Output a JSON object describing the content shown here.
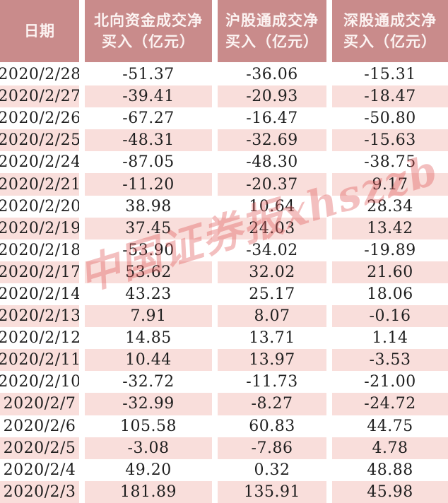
{
  "watermark": {
    "text": "中国证券报xhszzb",
    "color": "#e15f5f"
  },
  "colors": {
    "header_bg": "#c98b8b",
    "header_text": "#fcf3f2",
    "row_alt_bg": "#f9dedb",
    "row_bg": "#ffffff",
    "cell_text": "#1f1f1f"
  },
  "table": {
    "columns": [
      {
        "key": "date",
        "label": "日期",
        "label2": ""
      },
      {
        "key": "north",
        "label": "北向资金成交净",
        "label2": "买入（亿元）"
      },
      {
        "key": "sh",
        "label": "沪股通成交净",
        "label2": "买入（亿元）"
      },
      {
        "key": "sz",
        "label": "深股通成交净",
        "label2": "买入（亿元）"
      }
    ],
    "rows": [
      {
        "date": "2020/2/28",
        "north": "-51.37",
        "sh": "-36.06",
        "sz": "-15.31"
      },
      {
        "date": "2020/2/27",
        "north": "-39.41",
        "sh": "-20.93",
        "sz": "-18.47"
      },
      {
        "date": "2020/2/26",
        "north": "-67.27",
        "sh": "-16.47",
        "sz": "-50.80"
      },
      {
        "date": "2020/2/25",
        "north": "-48.31",
        "sh": "-32.69",
        "sz": "-15.63"
      },
      {
        "date": "2020/2/24",
        "north": "-87.05",
        "sh": "-48.30",
        "sz": "-38.75"
      },
      {
        "date": "2020/2/21",
        "north": "-11.20",
        "sh": "-20.37",
        "sz": "9.17"
      },
      {
        "date": "2020/2/20",
        "north": "38.98",
        "sh": "10.64",
        "sz": "28.34"
      },
      {
        "date": "2020/2/19",
        "north": "37.45",
        "sh": "24.03",
        "sz": "13.42"
      },
      {
        "date": "2020/2/18",
        "north": "-53.90",
        "sh": "-34.02",
        "sz": "-19.89"
      },
      {
        "date": "2020/2/17",
        "north": "53.62",
        "sh": "32.02",
        "sz": "21.60"
      },
      {
        "date": "2020/2/14",
        "north": "43.23",
        "sh": "25.17",
        "sz": "18.06"
      },
      {
        "date": "2020/2/13",
        "north": "7.91",
        "sh": "8.07",
        "sz": "-0.16"
      },
      {
        "date": "2020/2/12",
        "north": "14.85",
        "sh": "13.71",
        "sz": "1.14"
      },
      {
        "date": "2020/2/11",
        "north": "10.44",
        "sh": "13.97",
        "sz": "-3.53"
      },
      {
        "date": "2020/2/10",
        "north": "-32.72",
        "sh": "-11.73",
        "sz": "-21.00"
      },
      {
        "date": "2020/2/7",
        "north": "-32.99",
        "sh": "-8.27",
        "sz": "-24.72"
      },
      {
        "date": "2020/2/6",
        "north": "105.58",
        "sh": "60.83",
        "sz": "44.75"
      },
      {
        "date": "2020/2/5",
        "north": "-3.08",
        "sh": "-7.86",
        "sz": "4.78"
      },
      {
        "date": "2020/2/4",
        "north": "49.20",
        "sh": "0.32",
        "sz": "48.88"
      },
      {
        "date": "2020/2/3",
        "north": "181.89",
        "sh": "135.91",
        "sz": "45.98"
      }
    ]
  },
  "chart_data": {
    "type": "table",
    "title": "",
    "columns": [
      "日期",
      "北向资金成交净买入（亿元）",
      "沪股通成交净买入（亿元）",
      "深股通成交净买入（亿元）"
    ],
    "rows": [
      [
        "2020/2/28",
        -51.37,
        -36.06,
        -15.31
      ],
      [
        "2020/2/27",
        -39.41,
        -20.93,
        -18.47
      ],
      [
        "2020/2/26",
        -67.27,
        -16.47,
        -50.8
      ],
      [
        "2020/2/25",
        -48.31,
        -32.69,
        -15.63
      ],
      [
        "2020/2/24",
        -87.05,
        -48.3,
        -38.75
      ],
      [
        "2020/2/21",
        -11.2,
        -20.37,
        9.17
      ],
      [
        "2020/2/20",
        38.98,
        10.64,
        28.34
      ],
      [
        "2020/2/19",
        37.45,
        24.03,
        13.42
      ],
      [
        "2020/2/18",
        -53.9,
        -34.02,
        -19.89
      ],
      [
        "2020/2/17",
        53.62,
        32.02,
        21.6
      ],
      [
        "2020/2/14",
        43.23,
        25.17,
        18.06
      ],
      [
        "2020/2/13",
        7.91,
        8.07,
        -0.16
      ],
      [
        "2020/2/12",
        14.85,
        13.71,
        1.14
      ],
      [
        "2020/2/11",
        10.44,
        13.97,
        -3.53
      ],
      [
        "2020/2/10",
        -32.72,
        -11.73,
        -21.0
      ],
      [
        "2020/2/7",
        -32.99,
        -8.27,
        -24.72
      ],
      [
        "2020/2/6",
        105.58,
        60.83,
        44.75
      ],
      [
        "2020/2/5",
        -3.08,
        -7.86,
        4.78
      ],
      [
        "2020/2/4",
        49.2,
        0.32,
        48.88
      ],
      [
        "2020/2/3",
        181.89,
        135.91,
        45.98
      ]
    ],
    "annotations": [
      "中国证券报xhszzb watermark, diagonal"
    ]
  }
}
